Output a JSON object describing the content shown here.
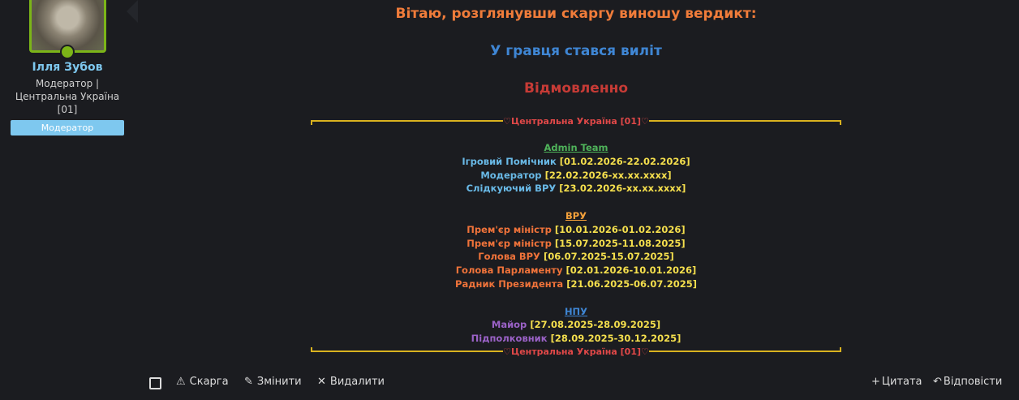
{
  "author": {
    "name": "Ілля Зубов",
    "title": "Модератор | Центральна Україна [01]",
    "badge": "Модератор"
  },
  "post": {
    "greeting": "Вітаю, розглянувши скаргу виношу вердикт:",
    "result": "У гравця стався виліт",
    "verdict": "Відмовленно",
    "divider_top": "♡Центральна Україна [01]♡",
    "sections": [
      {
        "heading": "Admin Team",
        "entries": [
          {
            "role": "Ігровий Помічник",
            "period": "[01.02.2026-22.02.2026]"
          },
          {
            "role": "Модератор",
            "period": "[22.02.2026-xx.xx.xxxx]"
          },
          {
            "role": "Слідкуючий ВРУ",
            "period": "[23.02.2026-xx.xx.xxxx]"
          }
        ]
      },
      {
        "heading": "ВРУ",
        "entries": [
          {
            "role": "Прем'єр міністр",
            "period": "[10.01.2026-01.02.2026]"
          },
          {
            "role": "Прем'єр міністр",
            "period": "[15.07.2025-11.08.2025]"
          },
          {
            "role": "Голова ВРУ",
            "period": "[06.07.2025-15.07.2025]"
          },
          {
            "role": "Голова Парламенту",
            "period": "[02.01.2026-10.01.2026]"
          },
          {
            "role": "Радник Президента",
            "period": "[21.06.2025-06.07.2025]"
          }
        ]
      },
      {
        "heading": "НПУ",
        "entries": [
          {
            "role": "Майор",
            "period": "[27.08.2025-28.09.2025]"
          },
          {
            "role": "Підполковник",
            "period": "[28.09.2025-30.12.2025]"
          }
        ]
      }
    ],
    "divider_bottom": "♡Центральна Україна [01]♡"
  },
  "actions": {
    "report": "Скарга",
    "edit": "Змінити",
    "delete": "Видалити",
    "quote": "Цитата",
    "reply": "Відповісти"
  }
}
